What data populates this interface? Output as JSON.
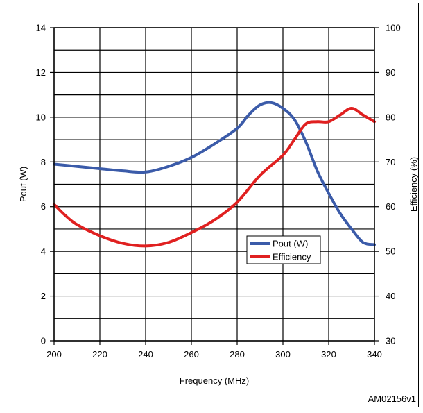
{
  "chart_data": {
    "type": "line",
    "title": "",
    "xlabel": "Frequency (MHz)",
    "ylabel": "Pout (W)",
    "y2label": "Efficiency (%)",
    "xlim": [
      200,
      340
    ],
    "ylim": [
      0,
      14
    ],
    "y2lim": [
      30,
      100
    ],
    "x_ticks": [
      "200",
      "220",
      "240",
      "260",
      "280",
      "300",
      "320",
      "340"
    ],
    "y_ticks": [
      "0",
      "2",
      "4",
      "6",
      "8",
      "10",
      "12",
      "14"
    ],
    "y2_ticks": [
      "30",
      "40",
      "50",
      "60",
      "70",
      "80",
      "90",
      "100"
    ],
    "grid": true,
    "legend_position": "center-right",
    "series": [
      {
        "name": "Pout (W)",
        "axis": "left",
        "color": "#3b5ba9",
        "x": [
          200,
          210,
          220,
          230,
          240,
          250,
          260,
          270,
          280,
          285,
          290,
          295,
          300,
          305,
          310,
          315,
          320,
          325,
          330,
          335,
          340
        ],
        "y": [
          7.9,
          7.8,
          7.7,
          7.6,
          7.55,
          7.8,
          8.2,
          8.8,
          9.5,
          10.1,
          10.55,
          10.65,
          10.4,
          9.9,
          8.9,
          7.6,
          6.6,
          5.7,
          5.0,
          4.4,
          4.3
        ]
      },
      {
        "name": "Efficiency",
        "axis": "right",
        "color": "#e02020",
        "x": [
          200,
          205,
          210,
          220,
          230,
          240,
          250,
          260,
          270,
          280,
          290,
          300,
          305,
          310,
          315,
          320,
          325,
          330,
          335,
          340
        ],
        "y": [
          60.5,
          58,
          56,
          53.5,
          51.8,
          51.2,
          52,
          54.2,
          57,
          61,
          67,
          71.5,
          75,
          78.5,
          79,
          79,
          80.5,
          82,
          80.5,
          79
        ]
      }
    ]
  },
  "figure_id": "AM02156v1"
}
